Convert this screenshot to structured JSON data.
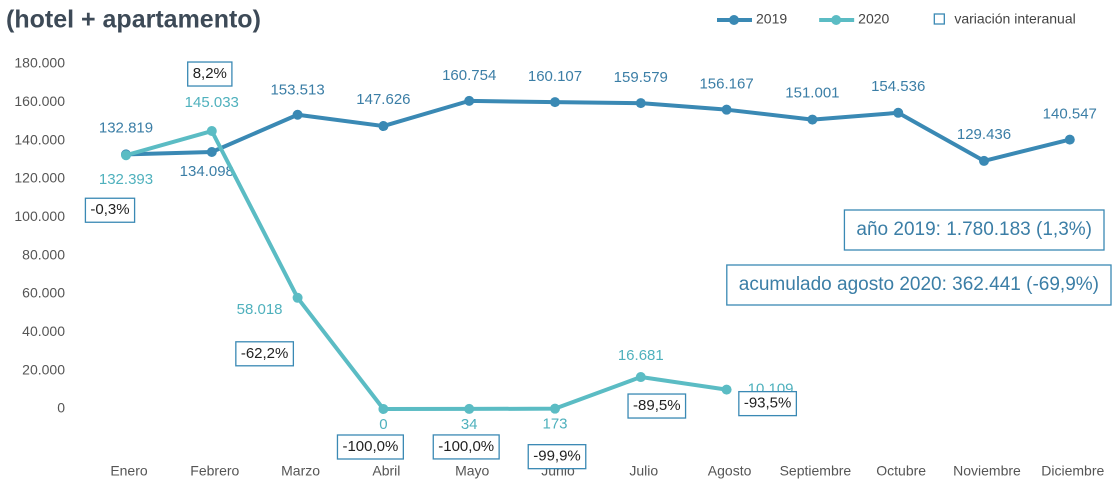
{
  "chart_data": {
    "type": "line",
    "title": "(hotel + apartamento)",
    "categories": [
      "Enero",
      "Febrero",
      "Marzo",
      "Abril",
      "Mayo",
      "Junio",
      "Julio",
      "Agosto",
      "Septiembre",
      "Octubre",
      "Noviembre",
      "Diciembre"
    ],
    "series": [
      {
        "name": "2019",
        "color": "#3a89b4",
        "label_color": "#3b7ea6",
        "values": [
          132819,
          134098,
          153513,
          147626,
          160754,
          160107,
          159579,
          156167,
          151001,
          154536,
          129436,
          140547
        ],
        "value_labels": [
          "132.819",
          "134.098",
          "153.513",
          "147.626",
          "160.754",
          "160.107",
          "159.579",
          "156.167",
          "151.001",
          "154.536",
          "129.436",
          "140.547"
        ]
      },
      {
        "name": "2020",
        "color": "#5bbcc4",
        "label_color": "#4fb1bd",
        "values": [
          132393,
          145033,
          58018,
          0,
          34,
          173,
          16681,
          10109,
          null,
          null,
          null,
          null
        ],
        "value_labels": [
          "132.393",
          "145.033",
          "58.018",
          "0",
          "34",
          "173",
          "16.681",
          "10.109",
          null,
          null,
          null,
          null
        ]
      },
      {
        "name": "variación interanual",
        "style": "box",
        "color": "#3a89b4",
        "values": [
          -0.3,
          8.2,
          -62.2,
          -100.0,
          -100.0,
          -99.9,
          -89.5,
          -93.5,
          null,
          null,
          null,
          null
        ],
        "value_labels": [
          "-0,3%",
          "8,2%",
          "-62,2%",
          "-100,0%",
          "-100,0%",
          "-99,9%",
          "-89,5%",
          "-93,5%",
          null,
          null,
          null,
          null
        ]
      }
    ],
    "annotations": [
      "año 2019: 1.780.183 (1,3%)",
      "acumulado agosto 2020: 362.441 (-69,9%)"
    ],
    "ylim": [
      0,
      180000
    ],
    "yticks": [
      0,
      {
        "value": 20000,
        "label": "20.000"
      },
      {
        "value": 40000,
        "label": "40.000"
      },
      {
        "value": 60000,
        "label": "60.000"
      },
      {
        "value": 80000,
        "label": "80.000"
      },
      {
        "value": 100000,
        "label": "100.000"
      },
      {
        "value": 120000,
        "label": "120.000"
      },
      {
        "value": 140000,
        "label": "140.000"
      },
      {
        "value": 160000,
        "label": "160.000"
      },
      {
        "value": 180000,
        "label": "180.000"
      }
    ],
    "grid": false,
    "legend": "top-right"
  }
}
